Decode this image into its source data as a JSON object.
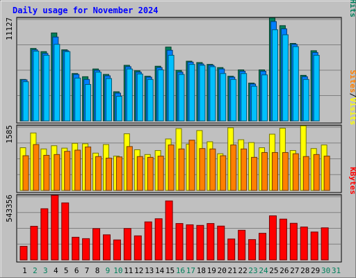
{
  "chart_data": {
    "type": "bar",
    "title": "Daily usage for November 2024",
    "x": [
      "1",
      "2",
      "3",
      "4",
      "5",
      "6",
      "7",
      "8",
      "9",
      "10",
      "11",
      "12",
      "13",
      "14",
      "15",
      "16",
      "17",
      "18",
      "19",
      "20",
      "21",
      "22",
      "23",
      "24",
      "25",
      "26",
      "27",
      "28",
      "29",
      "30",
      "31"
    ],
    "weekend_days": [
      "2",
      "3",
      "9",
      "10",
      "16",
      "17",
      "23",
      "24",
      "30",
      "31"
    ],
    "panels": [
      {
        "id": "top",
        "ymax": 11127,
        "ymax_label": "11127",
        "side_labels": [
          {
            "text": "Pages",
            "color": "#00c0ff"
          },
          {
            "text": "/",
            "color": "#000000"
          },
          {
            "text": "Files",
            "color": "#0080ff"
          },
          {
            "text": "/",
            "color": "#000000"
          },
          {
            "text": "Hits",
            "color": "#00805c"
          }
        ],
        "series": [
          {
            "name": "Hits",
            "color": "#00805c",
            "values": [
              4550,
              7950,
              7600,
              9650,
              7800,
              5200,
              4850,
              5700,
              5100,
              3200,
              6100,
              5500,
              4900,
              6000,
              8100,
              5550,
              6550,
              6400,
              6200,
              5850,
              4900,
              5600,
              4150,
              5600,
              11300,
              10450,
              8500,
              5000,
              7700,
              0,
              0
            ]
          },
          {
            "name": "Files",
            "color": "#0080ff",
            "values": [
              4500,
              7800,
              7400,
              9200,
              7700,
              5100,
              4550,
              5550,
              4950,
              3050,
              5950,
              5350,
              4800,
              5850,
              7750,
              5350,
              6450,
              6250,
              6100,
              5700,
              4800,
              5450,
              4050,
              5450,
              10900,
              10100,
              8400,
              4850,
              7500,
              0,
              0
            ]
          },
          {
            "name": "Pages",
            "color": "#00c0ff",
            "values": [
              4300,
              7650,
              7200,
              8400,
              7600,
              4700,
              4000,
              5350,
              4650,
              2700,
              5700,
              5150,
              4550,
              5600,
              7200,
              5100,
              6200,
              6100,
              5950,
              5200,
              4550,
              5200,
              3800,
              5050,
              10000,
              9450,
              8150,
              4550,
              7200,
              0,
              0
            ]
          }
        ]
      },
      {
        "id": "middle",
        "ymax": 1585,
        "ymax_label": "1585",
        "side_labels": [
          {
            "text": "Sites",
            "color": "#ff8000"
          },
          {
            "text": "/",
            "color": "#000000"
          },
          {
            "text": "Visits",
            "color": "#ffff00"
          }
        ],
        "series": [
          {
            "name": "Visits",
            "color": "#ffff00",
            "values": [
              1070,
              1440,
              1040,
              1120,
              1060,
              1180,
              1170,
              935,
              1150,
              860,
              1420,
              1020,
              900,
              1000,
              1290,
              1550,
              1160,
              1500,
              1220,
              920,
              1570,
              1270,
              1200,
              1070,
              1410,
              1560,
              1000,
              1620,
              1050,
              1140,
              0
            ]
          },
          {
            "name": "Sites",
            "color": "#ff8000",
            "values": [
              870,
              1150,
              880,
              900,
              980,
              1010,
              1090,
              850,
              810,
              840,
              1100,
              850,
              830,
              860,
              1140,
              1040,
              1260,
              1050,
              1040,
              870,
              1140,
              1040,
              830,
              950,
              950,
              950,
              920,
              850,
              900,
              860,
              0
            ]
          }
        ]
      },
      {
        "id": "bottom",
        "ymax": 543356,
        "ymax_label": "543356",
        "side_labels": [
          {
            "text": "KBytes",
            "color": "#ff0000"
          }
        ],
        "series": [
          {
            "name": "KBytes",
            "color": "#ff0000",
            "values": [
              117000,
              289000,
              440000,
              555000,
              490000,
              195000,
              183000,
              269000,
              216000,
              172000,
              270000,
              207000,
              327000,
              354000,
              507000,
              313000,
              302000,
              297000,
              313000,
              291000,
              180000,
              255000,
              175000,
              229000,
              379000,
              351000,
              315000,
              283000,
              240000,
              276000,
              0
            ]
          }
        ]
      }
    ]
  }
}
